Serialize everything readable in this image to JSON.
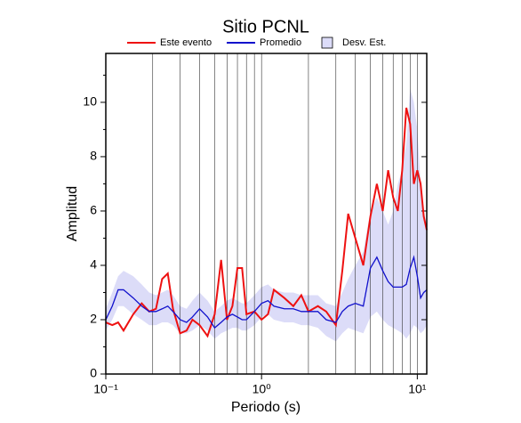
{
  "chart_data": {
    "type": "line",
    "title": "Sitio PCNL",
    "x_label": "Periodo (s)",
    "y_label": "Amplitud",
    "xscale": "log",
    "xlim": [
      0.1,
      11.5
    ],
    "ylim": [
      0,
      11.8
    ],
    "xticks": [
      {
        "value": 0.1,
        "label": "10⁻¹"
      },
      {
        "value": 1,
        "label": "10⁰"
      },
      {
        "value": 10,
        "label": "10¹"
      }
    ],
    "xgrid": [
      0.2,
      0.3,
      0.4,
      0.5,
      0.6,
      0.7,
      0.8,
      0.9,
      2,
      3,
      4,
      5,
      6,
      7,
      8,
      9
    ],
    "yticks": [
      0,
      2,
      4,
      6,
      8,
      10
    ],
    "yminorticks": [
      1,
      3,
      5,
      7,
      9,
      11
    ],
    "x": [
      0.1,
      0.11,
      0.12,
      0.13,
      0.15,
      0.17,
      0.19,
      0.21,
      0.23,
      0.25,
      0.27,
      0.3,
      0.33,
      0.36,
      0.4,
      0.45,
      0.5,
      0.55,
      0.6,
      0.65,
      0.7,
      0.75,
      0.8,
      0.9,
      1.0,
      1.1,
      1.2,
      1.4,
      1.6,
      1.8,
      2.0,
      2.3,
      2.6,
      3.0,
      3.3,
      3.6,
      4.0,
      4.5,
      5.0,
      5.5,
      6.0,
      6.5,
      7.0,
      7.5,
      8.0,
      8.5,
      9.0,
      9.5,
      10.0,
      10.5,
      11.0,
      11.5
    ],
    "band": {
      "name": "Desv. Est.",
      "color": "#dcdcf8",
      "upper": [
        2.4,
        3.0,
        3.6,
        3.8,
        3.6,
        3.3,
        3.0,
        2.9,
        3.0,
        3.1,
        2.9,
        2.5,
        2.4,
        2.7,
        3.0,
        2.7,
        2.3,
        2.5,
        2.7,
        2.8,
        2.7,
        2.6,
        2.6,
        2.9,
        3.2,
        3.3,
        3.1,
        3.0,
        3.0,
        2.9,
        2.9,
        2.9,
        2.6,
        2.5,
        3.0,
        3.5,
        4.0,
        4.5,
        6.0,
        6.5,
        6.0,
        5.5,
        6.0,
        7.0,
        7.5,
        8.5,
        10.5,
        10.0,
        9.0,
        7.0,
        6.0,
        5.5
      ],
      "lower": [
        1.6,
        2.0,
        2.5,
        2.5,
        2.2,
        2.0,
        1.8,
        1.8,
        1.9,
        1.9,
        1.8,
        1.5,
        1.5,
        1.6,
        1.8,
        1.6,
        1.3,
        1.5,
        1.6,
        1.7,
        1.7,
        1.6,
        1.6,
        1.8,
        2.1,
        2.2,
        2.0,
        1.9,
        1.9,
        1.8,
        1.8,
        1.7,
        1.4,
        1.2,
        1.5,
        1.7,
        1.6,
        1.5,
        2.1,
        2.3,
        2.0,
        1.8,
        1.7,
        1.6,
        1.5,
        1.3,
        1.5,
        1.8,
        1.7,
        1.5,
        1.6,
        1.8
      ]
    },
    "series": [
      {
        "name": "Este evento",
        "color": "#ee1111",
        "values": [
          1.9,
          1.8,
          1.9,
          1.6,
          2.2,
          2.6,
          2.3,
          2.4,
          3.5,
          3.7,
          2.4,
          1.5,
          1.6,
          2.0,
          1.8,
          1.4,
          2.2,
          4.2,
          2.0,
          2.5,
          3.9,
          3.9,
          2.2,
          2.3,
          2.0,
          2.2,
          3.1,
          2.8,
          2.5,
          2.9,
          2.3,
          2.5,
          2.3,
          1.8,
          3.8,
          5.9,
          5.0,
          4.0,
          5.8,
          7.0,
          6.0,
          7.5,
          6.5,
          6.0,
          7.5,
          9.8,
          9.2,
          7.0,
          7.5,
          7.0,
          5.8,
          5.3
        ]
      },
      {
        "name": "Promedio",
        "color": "#1111cc",
        "values": [
          2.0,
          2.5,
          3.1,
          3.1,
          2.8,
          2.5,
          2.3,
          2.3,
          2.4,
          2.5,
          2.3,
          2.0,
          1.9,
          2.1,
          2.4,
          2.1,
          1.7,
          1.9,
          2.1,
          2.2,
          2.1,
          2.0,
          2.0,
          2.3,
          2.6,
          2.7,
          2.5,
          2.4,
          2.4,
          2.3,
          2.3,
          2.3,
          2.0,
          1.9,
          2.3,
          2.5,
          2.6,
          2.5,
          3.9,
          4.3,
          3.8,
          3.4,
          3.2,
          3.2,
          3.2,
          3.3,
          3.9,
          4.3,
          3.6,
          2.8,
          3.0,
          3.1
        ]
      }
    ]
  }
}
